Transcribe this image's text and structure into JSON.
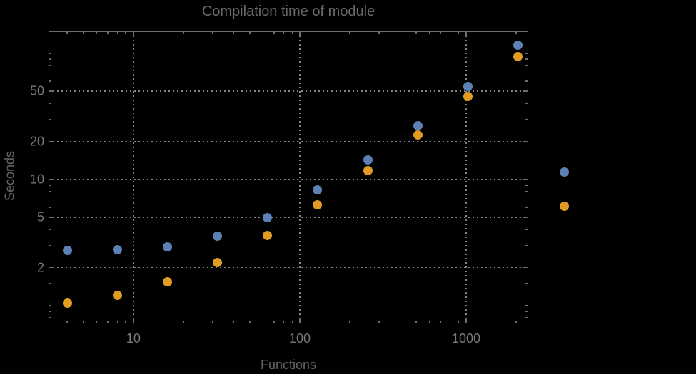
{
  "title": "Compilation time of module",
  "chart_data": {
    "type": "scatter",
    "title": "Compilation time of module",
    "xlabel": "Functions",
    "ylabel": "Seconds",
    "x_scale": "log",
    "y_scale": "log",
    "xlim": [
      3.09,
      2361
    ],
    "ylim": [
      0.72,
      149.7
    ],
    "grid": {
      "style": "dotted",
      "x_values": [
        10,
        100,
        1000
      ],
      "y_values": [
        2,
        5,
        10,
        20,
        50
      ]
    },
    "x_ticks": {
      "labeled": [
        10,
        100,
        1000
      ],
      "labels": [
        "10",
        "100",
        "1000"
      ],
      "minor": [
        4,
        5,
        6,
        7,
        8,
        9,
        20,
        30,
        40,
        50,
        60,
        70,
        80,
        90,
        200,
        300,
        400,
        500,
        600,
        700,
        800,
        900,
        2000
      ]
    },
    "y_ticks": {
      "labeled": [
        2,
        5,
        10,
        20,
        50
      ],
      "labels": [
        "2",
        "5",
        "10",
        "20",
        "50"
      ],
      "minor": [
        0.8,
        0.9,
        1,
        1.5,
        3,
        4,
        6,
        7,
        8,
        9,
        15,
        30,
        40,
        60,
        70,
        80,
        90,
        100
      ]
    },
    "series": [
      {
        "name": "series-1",
        "color": "#5e81b5",
        "x": [
          4,
          8,
          16,
          32,
          64,
          128,
          256,
          512,
          1024,
          2048
        ],
        "y": [
          2.74,
          2.78,
          2.9,
          3.55,
          5.0,
          8.3,
          14.3,
          26.8,
          54.5,
          116
        ]
      },
      {
        "name": "series-2",
        "color": "#e19c24",
        "x": [
          4,
          8,
          16,
          32,
          64,
          128,
          256,
          512,
          1024,
          2048
        ],
        "y": [
          1.04,
          1.21,
          1.55,
          2.2,
          3.6,
          6.3,
          11.8,
          22.4,
          45.2,
          94
        ]
      }
    ],
    "legend": {
      "position": "right-outside",
      "markers": [
        {
          "series": "series-1",
          "color": "#5e81b5"
        },
        {
          "series": "series-2",
          "color": "#e19c24"
        }
      ]
    }
  },
  "colors": {
    "background": "#000000",
    "frame": "#6e6e6e",
    "grid": "#858585",
    "tick_labels": "#787878",
    "axis_labels": "#646464",
    "title": "#69696d",
    "series1": "#5e81b5",
    "series2": "#e19c24"
  }
}
